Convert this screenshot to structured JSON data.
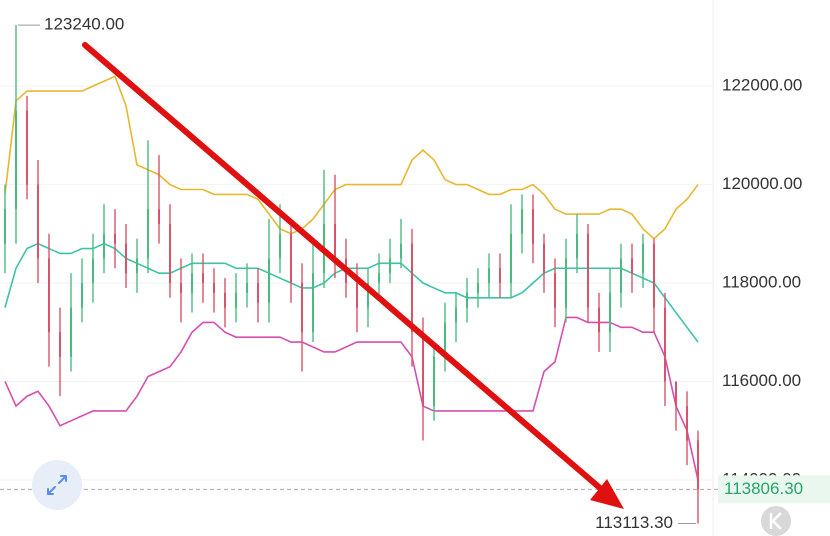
{
  "chart_data": {
    "type": "candlestick",
    "ylim": [
      112860,
      123750
    ],
    "yticks": [
      {
        "value": 114000,
        "label": "114000.00"
      },
      {
        "value": 116000,
        "label": "116000.00"
      },
      {
        "value": 118000,
        "label": "118000.00"
      },
      {
        "value": 120000,
        "label": "120000.00"
      },
      {
        "value": 122000,
        "label": "122000.00"
      }
    ],
    "grid": true,
    "up_color": "#4cbb7f",
    "down_color": "#d9546a",
    "open": [
      118800,
      119500,
      121500,
      120000,
      118500,
      117000,
      116500,
      117500,
      118000,
      118500,
      119000,
      118800,
      118200,
      118500,
      119500,
      119200,
      118000,
      117800,
      118200,
      118000,
      117800,
      117500,
      117800,
      118000,
      117600,
      118500,
      119000,
      118000,
      117000,
      118200,
      119200,
      118500,
      118000,
      117500,
      118000,
      118200,
      118500,
      118800,
      117000,
      115500,
      116500,
      117200,
      117500,
      117800,
      118000,
      118300,
      118000,
      119000,
      119500,
      118800,
      118200,
      117500,
      118500,
      119000,
      117500,
      117000,
      117800,
      118500,
      118200,
      118800,
      117500,
      116000,
      115500,
      114800
    ],
    "high": [
      120000,
      123240,
      121800,
      120500,
      119000,
      117500,
      118200,
      118500,
      119000,
      119600,
      119500,
      119200,
      118900,
      120900,
      120600,
      119600,
      118500,
      118600,
      118600,
      118300,
      118100,
      118200,
      118400,
      118300,
      119300,
      119600,
      119300,
      118400,
      118800,
      120300,
      120200,
      118900,
      118400,
      118300,
      118600,
      118900,
      119300,
      119100,
      117300,
      116800,
      117600,
      117800,
      118100,
      118300,
      118600,
      118600,
      119600,
      119800,
      119800,
      119000,
      118500,
      118900,
      119400,
      119200,
      117800,
      118300,
      118800,
      118800,
      119000,
      118900,
      117800,
      116000,
      115800,
      115000
    ],
    "low": [
      118200,
      118800,
      119700,
      118000,
      116300,
      115700,
      116200,
      117200,
      117600,
      118200,
      118300,
      117900,
      117800,
      118200,
      118800,
      117700,
      117200,
      117400,
      117600,
      117400,
      117100,
      117200,
      117500,
      117200,
      117200,
      118200,
      117600,
      116200,
      116800,
      117900,
      118100,
      117700,
      117000,
      117100,
      117700,
      118000,
      118300,
      116300,
      114800,
      115200,
      116200,
      116800,
      117200,
      117500,
      117700,
      117700,
      117700,
      118600,
      118400,
      117800,
      117100,
      117200,
      118200,
      117200,
      116600,
      116600,
      117500,
      117800,
      117900,
      117000,
      115500,
      115000,
      114300,
      113113.3
    ],
    "close": [
      119500,
      121500,
      120000,
      118500,
      117000,
      116500,
      117500,
      118000,
      118500,
      119000,
      118800,
      118200,
      118500,
      119500,
      119200,
      118000,
      117800,
      118200,
      118000,
      117800,
      117500,
      117800,
      118000,
      117600,
      118500,
      119000,
      118000,
      117000,
      118200,
      119200,
      118500,
      118000,
      117500,
      118000,
      118200,
      118500,
      118800,
      117000,
      115500,
      116500,
      117200,
      117500,
      117800,
      118000,
      118300,
      118000,
      119000,
      119500,
      118800,
      118200,
      117500,
      118500,
      119000,
      117500,
      117000,
      117800,
      118500,
      118200,
      118800,
      117500,
      116000,
      115500,
      114800,
      113806.3
    ],
    "bands": [
      {
        "color": "#e8b730",
        "values": [
          119800,
          121700,
          121900,
          121900,
          121900,
          121900,
          121900,
          121900,
          122000,
          122100,
          122200,
          121600,
          120400,
          120300,
          120200,
          120000,
          119900,
          119900,
          119900,
          119800,
          119800,
          119800,
          119800,
          119700,
          119400,
          119100,
          119000,
          119100,
          119300,
          119600,
          119900,
          120000,
          120000,
          120000,
          120000,
          120000,
          120000,
          120500,
          120700,
          120500,
          120100,
          120000,
          120000,
          119900,
          119800,
          119800,
          119900,
          119900,
          120000,
          119800,
          119500,
          119400,
          119400,
          119400,
          119400,
          119500,
          119500,
          119400,
          119100,
          118900,
          119100,
          119500,
          119700,
          120000
        ]
      },
      {
        "color": "#3cc3a8",
        "values": [
          117500,
          118300,
          118700,
          118800,
          118700,
          118600,
          118600,
          118700,
          118700,
          118800,
          118700,
          118500,
          118400,
          118300,
          118200,
          118200,
          118300,
          118400,
          118400,
          118400,
          118400,
          118300,
          118300,
          118300,
          118200,
          118100,
          118000,
          117900,
          117900,
          118000,
          118200,
          118300,
          118300,
          118300,
          118400,
          118400,
          118400,
          118200,
          118000,
          117900,
          117800,
          117800,
          117700,
          117700,
          117700,
          117700,
          117700,
          117800,
          118000,
          118200,
          118300,
          118300,
          118300,
          118300,
          118300,
          118300,
          118300,
          118200,
          118100,
          118000,
          117700,
          117400,
          117100,
          116800
        ]
      },
      {
        "color": "#d64fb0",
        "values": [
          116000,
          115500,
          115700,
          115800,
          115500,
          115100,
          115200,
          115300,
          115400,
          115400,
          115400,
          115400,
          115700,
          116100,
          116200,
          116300,
          116600,
          117000,
          117200,
          117200,
          117000,
          116900,
          116900,
          116900,
          116900,
          116900,
          116800,
          116800,
          116700,
          116600,
          116600,
          116700,
          116800,
          116800,
          116800,
          116800,
          116800,
          116500,
          115500,
          115400,
          115400,
          115400,
          115400,
          115400,
          115400,
          115400,
          115400,
          115400,
          115400,
          116200,
          116400,
          117300,
          117300,
          117200,
          117200,
          117200,
          117100,
          117100,
          117000,
          117000,
          116500,
          115500,
          115000,
          114000
        ]
      }
    ],
    "max_label": {
      "value": 123240,
      "label": "123240.00"
    },
    "min_label": {
      "value": 113113.3,
      "label": "113113.30"
    },
    "last_price": {
      "value": 113806.3,
      "label": "113806.30"
    }
  }
}
